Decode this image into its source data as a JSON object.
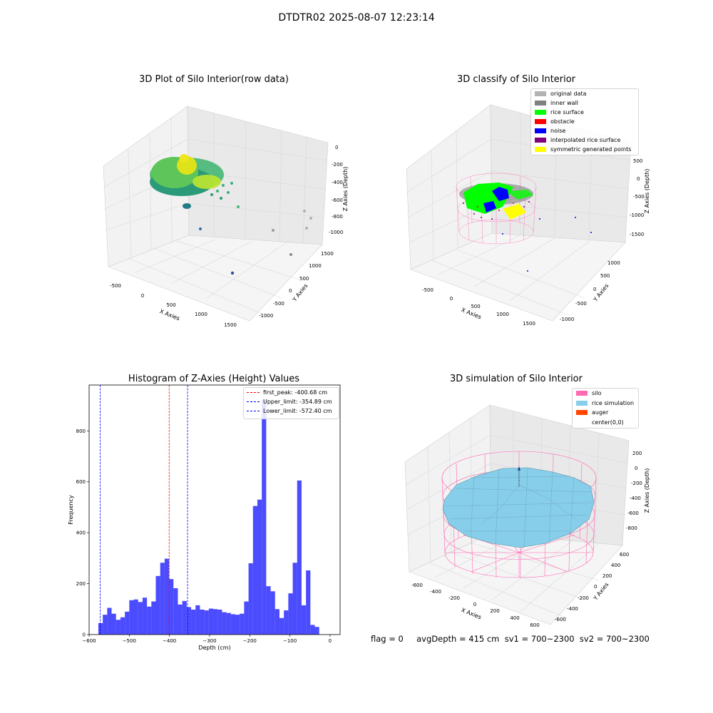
{
  "figure": {
    "suptitle": "DTDTR02 2025-08-07 12:23:14",
    "footer": "flag = 0     avgDepth = 415 cm  sv1 = 700~2300  sv2 = 700~2300"
  },
  "panels": {
    "raw": {
      "title": "3D Plot of Silo Interior(row data)",
      "xlabel": "X Axies",
      "ylabel": "Y Axies",
      "zlabel": "Z Axies (Depth)",
      "xticks": [
        "-500",
        "0",
        "500",
        "1000",
        "1500"
      ],
      "yticks": [
        "-1000",
        "-500",
        "0",
        "500",
        "1000",
        "1500"
      ],
      "zticks": [
        "0",
        "-200",
        "-400",
        "-600",
        "-800",
        "-1000"
      ]
    },
    "classify": {
      "title": "3D classify of Silo Interior",
      "xlabel": "X Axies",
      "ylabel": "Y Axies",
      "zlabel": "Z Axies (Depth)",
      "xticks": [
        "-500",
        "0",
        "500",
        "1000",
        "1500"
      ],
      "yticks": [
        "-1000",
        "-500",
        "0",
        "500",
        "1000"
      ],
      "zticks": [
        "500",
        "0",
        "-500",
        "-1000",
        "-1500"
      ],
      "legend": [
        {
          "label": "original data",
          "color": "#b3b3b3"
        },
        {
          "label": "inner wall",
          "color": "#808080"
        },
        {
          "label": "rice surface",
          "color": "#00ff00"
        },
        {
          "label": "obstacle",
          "color": "#ff0000"
        },
        {
          "label": "noise",
          "color": "#0000ff"
        },
        {
          "label": "interpolated rice surface",
          "color": "#800080"
        },
        {
          "label": "symmetric generated points",
          "color": "#ffff00"
        }
      ]
    },
    "simulation": {
      "title": "3D simulation of Silo Interior",
      "xlabel": "X Axies",
      "ylabel": "Y Axies",
      "zlabel": "Z Axies (Depth)",
      "xticks": [
        "-600",
        "-400",
        "-200",
        "0",
        "200",
        "400",
        "600"
      ],
      "yticks": [
        "-600",
        "-400",
        "-200",
        "0",
        "200",
        "400",
        "600"
      ],
      "zticks": [
        "200",
        "0",
        "-200",
        "-400",
        "-600",
        "-800"
      ],
      "legend": [
        {
          "label": "silo",
          "color": "#ff69b4"
        },
        {
          "label": "rice simulation",
          "color": "#87ceeb"
        },
        {
          "label": "auger",
          "color": "#ff4500"
        },
        {
          "label": "center(0,0)",
          "color": "#ffffff"
        }
      ]
    }
  },
  "chart_data": {
    "type": "bar",
    "title": "Histogram of Z-Axies (Height) Values",
    "xlabel": "Depth (cm)",
    "ylabel": "Frequency",
    "xlim": [
      -600,
      25
    ],
    "ylim": [
      0,
      980
    ],
    "xticks": [
      -600,
      -500,
      -400,
      -300,
      -200,
      -100,
      0
    ],
    "yticks": [
      0,
      200,
      400,
      600,
      800
    ],
    "bin_start": -577,
    "bin_width": 11,
    "values": [
      45,
      78,
      105,
      82,
      58,
      68,
      90,
      135,
      138,
      128,
      145,
      110,
      130,
      230,
      282,
      298,
      218,
      182,
      118,
      132,
      108,
      98,
      115,
      98,
      95,
      102,
      100,
      98,
      88,
      85,
      80,
      78,
      82,
      130,
      280,
      505,
      530,
      920,
      190,
      170,
      100,
      65,
      95,
      162,
      282,
      605,
      115,
      252,
      38,
      30
    ],
    "bar_color": "#0000ff",
    "vlines": [
      {
        "label": "first_peak: -400.68 cm",
        "x": -400.68,
        "color": "#ff0000"
      },
      {
        "label": "Upper_limit: -354.89 cm",
        "x": -354.89,
        "color": "#0000ff"
      },
      {
        "label": "Lower_limit: -572.40 cm",
        "x": -572.4,
        "color": "#0000ff"
      }
    ],
    "legend_position": "top-right"
  }
}
